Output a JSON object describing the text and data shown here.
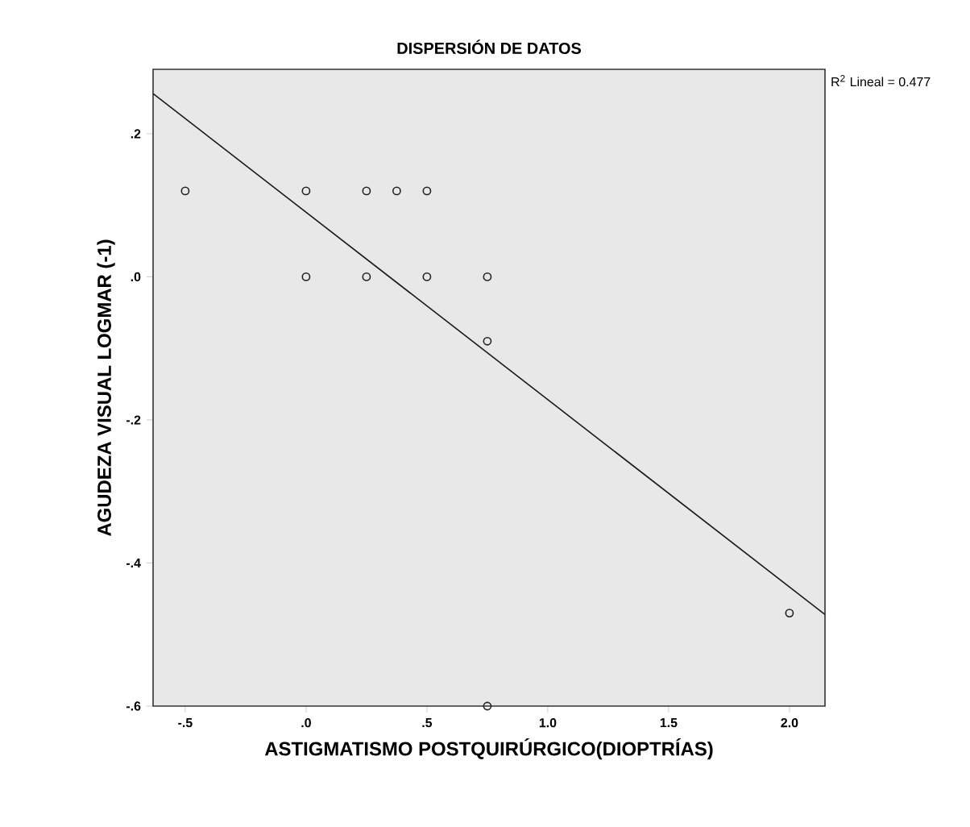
{
  "chart_data": {
    "type": "scatter",
    "title": "DISPERSIÓN DE DATOS",
    "xlabel": "ASTIGMATISMO POSTQUIRÚRGICO(DIOPTRÍAS)",
    "ylabel": "AGUDEZA VISUAL LOGMAR (-1)",
    "annotations": [
      "R$^{2}$ Lineal = 0.477"
    ],
    "series": [
      {
        "color": "#222222",
        "marker": "circle",
        "x": [
          -0.5,
          0,
          0.25,
          0.375,
          0.5,
          0,
          0.25,
          0.5,
          0.75,
          0.75,
          2.0,
          0.75
        ],
        "values": [
          0.12,
          0.12,
          0.12,
          0.12,
          0.12,
          0,
          0,
          0,
          0,
          -0.09,
          -0.47,
          -0.6
        ]
      },
      {
        "type": "line",
        "color": "#1a1a1a",
        "line_style": "solid",
        "x": [
          -0.633,
          2.147
        ],
        "values": [
          0.256,
          -0.472
        ]
      }
    ],
    "xlim": [
      -0.633,
      2.147
    ],
    "ylim": [
      -0.6,
      0.29
    ],
    "xticks": [
      {
        "value": -0.5,
        "label": "-.5"
      },
      {
        "value": 0,
        "label": ".0"
      },
      {
        "value": 0.5,
        "label": ".5"
      },
      {
        "value": 1.0,
        "label": "1.0"
      },
      {
        "value": 1.5,
        "label": "1.5"
      },
      {
        "value": 2.0,
        "label": "2.0"
      }
    ],
    "yticks": [
      {
        "value": -0.6,
        "label": "-.6"
      },
      {
        "value": -0.4,
        "label": "-.4"
      },
      {
        "value": -0.2,
        "label": "-.2"
      },
      {
        "value": 0,
        "label": ".0"
      },
      {
        "value": 0.2,
        "label": ".2"
      }
    ],
    "grid": false
  }
}
